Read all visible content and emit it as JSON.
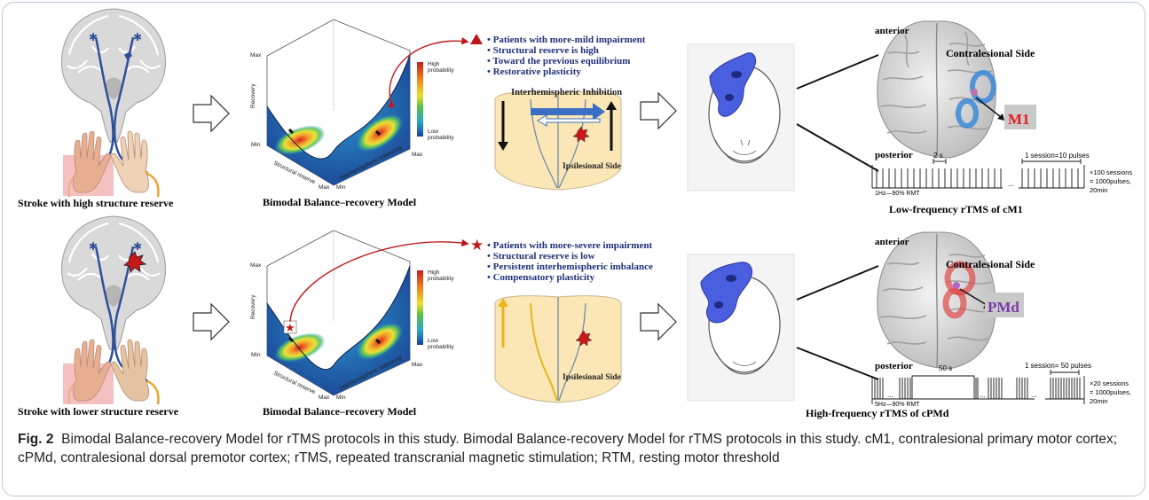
{
  "row1": {
    "brain_caption": "Stroke with high structure reserve",
    "model_caption": "Bimodal Balance–recovery Model",
    "bullets": [
      "Patients with more-mild impairment",
      "Structural reserve is high",
      "Toward the previous equilibrium",
      "Restorative plasticity"
    ],
    "cortex_title": "Interhemispheric Inhibition",
    "cortex_side": "Ipsilesional Side",
    "brain3d_anterior": "anterior",
    "brain3d_side": "Contralesional Side",
    "brain3d_posterior": "posterior",
    "target": "M1",
    "pulse_interval": "2 s",
    "pulse_session": "1 session=10 pulses",
    "pulse_left": "1Hz—90% RMT",
    "pulse_sessions": "×100 sessions",
    "pulse_total": "= 1000pulses,",
    "pulse_time": "20min",
    "protocol": "Low-frequency rTMS of cM1"
  },
  "row2": {
    "brain_caption": "Stroke with lower structure reserve",
    "model_caption": "Bimodal Balance–recovery Model",
    "bullets": [
      "Patients with more-severe impairment",
      "Structural reserve is low",
      "Persistent interhemispheric imbalance",
      "Compensatory plasticity"
    ],
    "cortex_side": "Ipsilesional Side",
    "brain3d_anterior": "anterior",
    "brain3d_side": "Contralesional Side",
    "brain3d_posterior": "posterior",
    "target": "PMd",
    "pulse_interval": "50 s",
    "pulse_session": "1 session= 50 pulses",
    "pulse_left": "5Hz—90% RMT",
    "pulse_sessions": "×20 sessions",
    "pulse_total": "= 1000pulses,",
    "pulse_time": "20min",
    "protocol": "High-frequency rTMS of cPMd"
  },
  "surface": {
    "max": "Max",
    "min": "Min",
    "recovery": "Recovery",
    "structural": "Structural reserve",
    "interhemispheric": "Interhemispheric balancing",
    "legend_high": "High probability",
    "legend_low": "Low probability"
  },
  "caption": {
    "label": "Fig. 2",
    "text": "Bimodal Balance-recovery Model for rTMS protocols in this study. Bimodal Balance-recovery Model for rTMS protocols in this study. cM1, contralesional primary motor cortex; cPMd, contralesional dorsal premotor cortex; rTMS, repeated transcranial magnetic stimulation; RTM, resting motor threshold"
  },
  "colors": {
    "navy": "#1f2f7a",
    "red": "#c0181a",
    "blue": "#3b82c4",
    "coil": "#4a5ee0",
    "lesion": "#c81818"
  }
}
